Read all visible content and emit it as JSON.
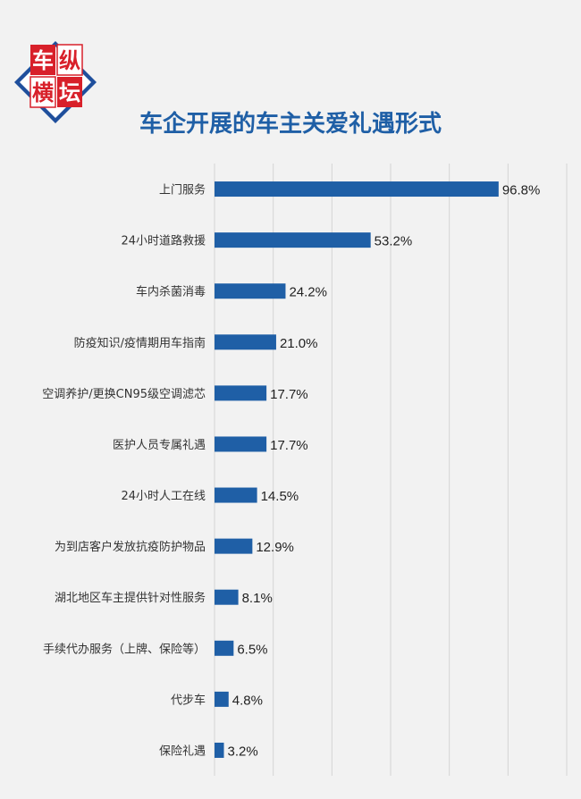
{
  "brand": {
    "logo_chars": [
      "车",
      "纵",
      "横",
      "坛"
    ]
  },
  "colors": {
    "bar": "#1f5fa6",
    "title": "#1f5fa6",
    "grid": "#d4d4d4",
    "logo_red": "#d8202a",
    "logo_blue": "#1f4f9c"
  },
  "chart_data": {
    "type": "bar",
    "orientation": "horizontal",
    "title": "车企开展的车主关爱礼遇形式",
    "categories": [
      "上门服务",
      "24小时道路救援",
      "车内杀菌消毒",
      "防疫知识/疫情期用车指南",
      "空调养护/更换CN95级空调滤芯",
      "医护人员专属礼遇",
      "24小时人工在线",
      "为到店客户发放抗疫防护物品",
      "湖北地区车主提供针对性服务",
      "手续代办服务（上牌、保险等）",
      "代步车",
      "保险礼遇"
    ],
    "values": [
      96.8,
      53.2,
      24.2,
      21.0,
      17.7,
      17.7,
      14.5,
      12.9,
      8.1,
      6.5,
      4.8,
      3.2
    ],
    "value_labels": [
      "96.8%",
      "53.2%",
      "24.2%",
      "21.0%",
      "17.7%",
      "17.7%",
      "14.5%",
      "12.9%",
      "8.1%",
      "6.5%",
      "4.8%",
      "3.2%"
    ],
    "xlim": [
      0,
      120
    ],
    "grid": true,
    "legend": false
  }
}
